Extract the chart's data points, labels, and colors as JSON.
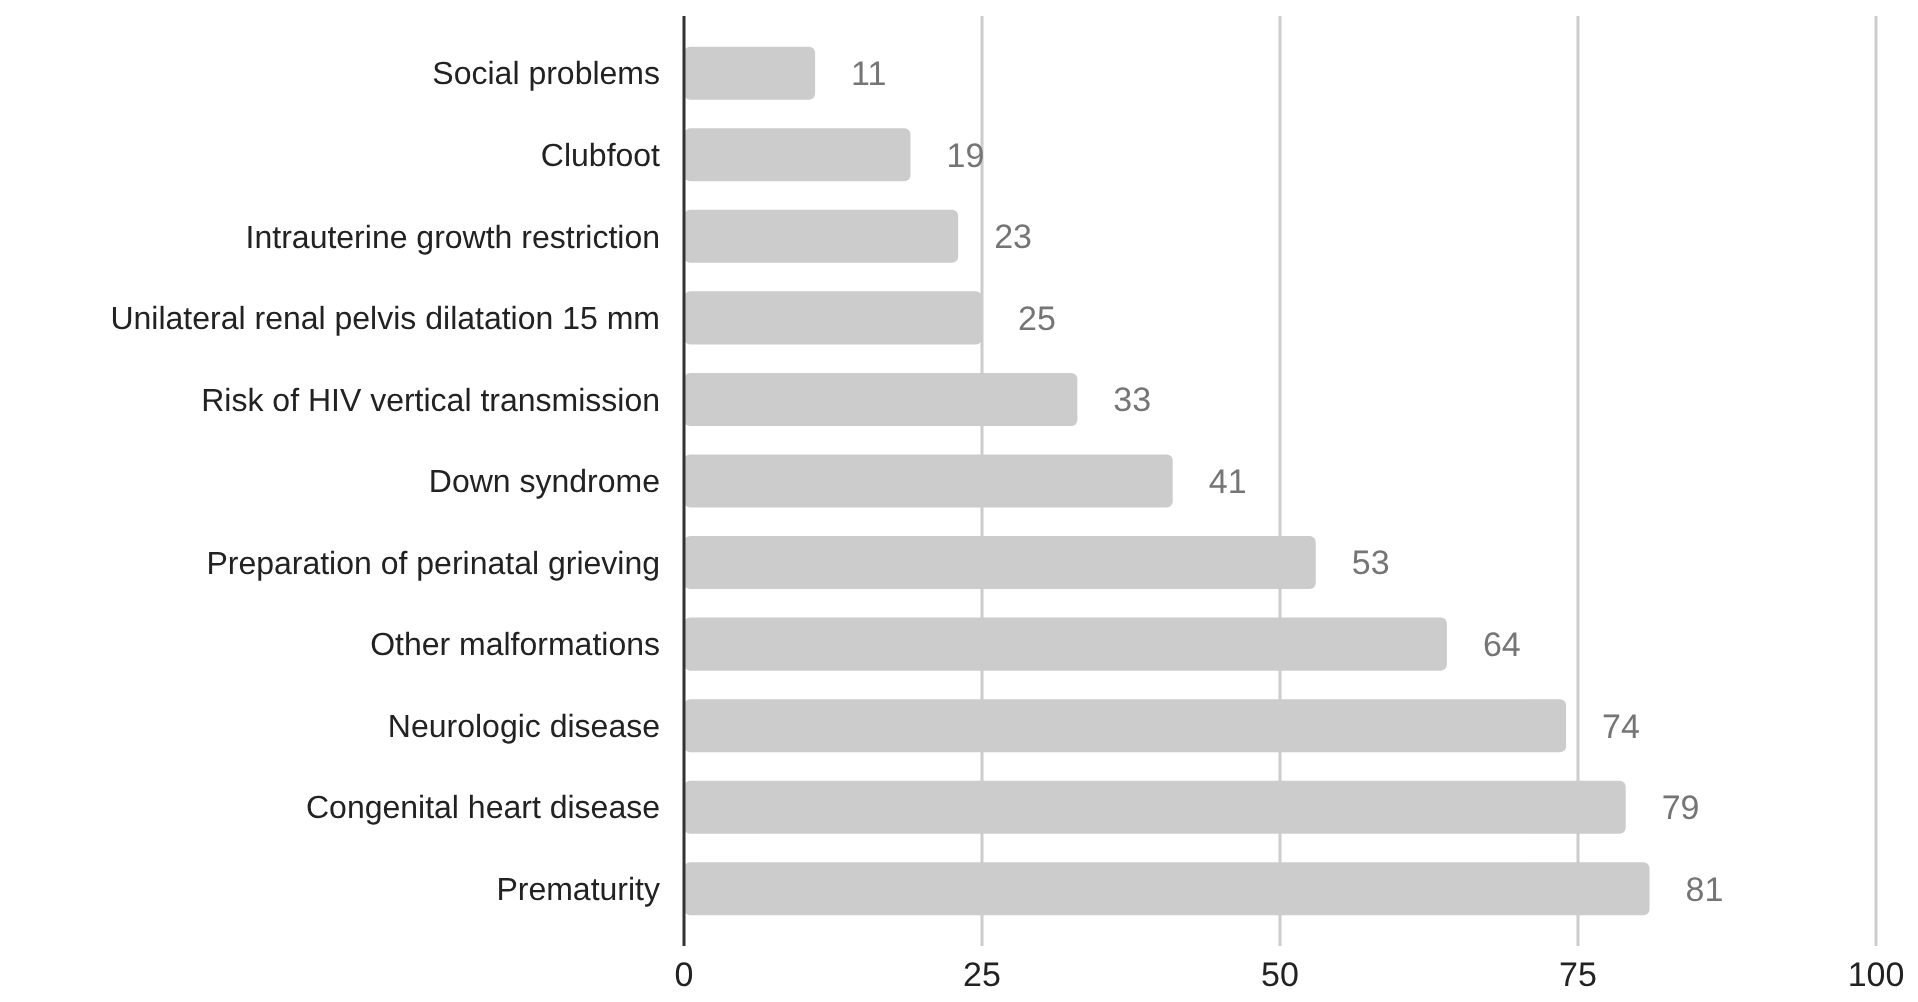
{
  "chart_data": {
    "type": "bar",
    "orientation": "horizontal",
    "categories": [
      "Social problems",
      "Clubfoot",
      "Intrauterine growth restriction",
      "Unilateral renal pelvis dilatation 15 mm",
      "Risk of HIV vertical transmission",
      "Down syndrome",
      "Preparation of perinatal grieving",
      "Other malformations",
      "Neurologic disease",
      "Congenital heart disease",
      "Prematurity"
    ],
    "values": [
      11,
      19,
      23,
      25,
      33,
      41,
      53,
      64,
      74,
      79,
      81
    ],
    "color": "#cccccc",
    "xlim": [
      0,
      100
    ],
    "xticks": [
      0,
      25,
      50,
      75,
      100
    ],
    "grid": "x",
    "data_labels": true
  }
}
